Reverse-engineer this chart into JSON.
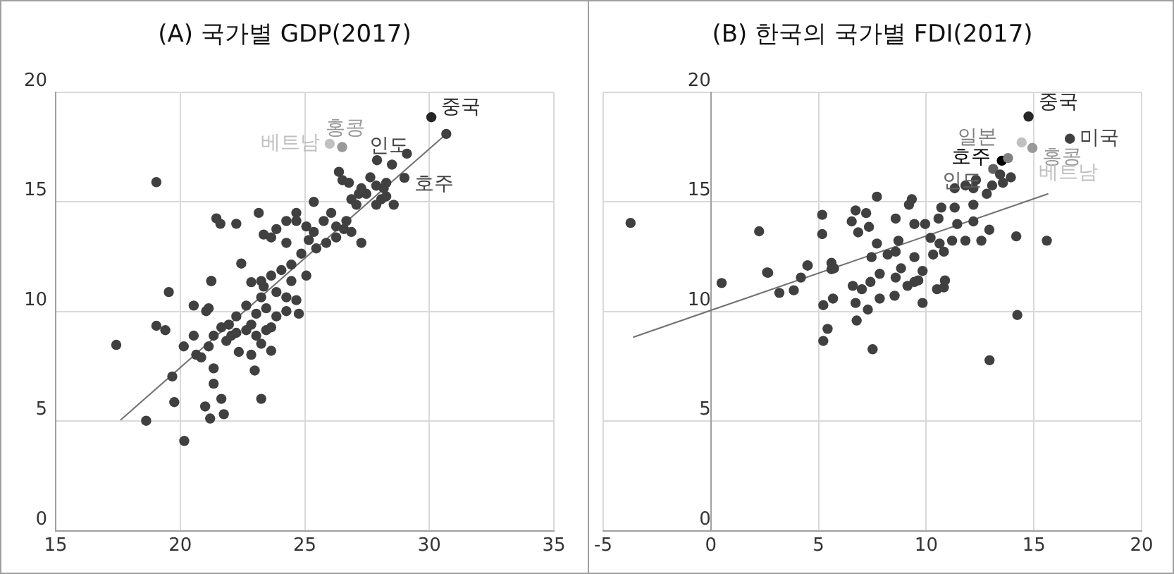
{
  "chart_data": [
    {
      "type": "scatter",
      "title": "(A) 국가별 GDP(2017)",
      "xlim": [
        15,
        35
      ],
      "xticks": [
        15,
        20,
        25,
        30,
        35
      ],
      "ylim": [
        0,
        20
      ],
      "yticks": [
        0,
        5,
        10,
        15,
        20
      ],
      "grid": true,
      "legend": false,
      "marker": "circle",
      "series": [
        {
          "color": "#404040",
          "x": [
            26.37,
            26.51,
            26.77,
            27.27,
            27.63,
            27.87,
            28.17,
            28.27,
            28.57,
            27.87,
            27.17,
            26.87,
            25.36,
            24.66,
            24.26,
            23.86,
            23.65,
            24.66,
            25.06,
            25.76,
            26.06,
            26.26,
            26.57,
            26.87,
            27.27,
            25.36,
            25.16,
            24.26,
            23.35,
            23.15,
            21.45,
            21.61,
            22.25,
            22.45,
            21.25,
            26.26,
            25.86,
            25.46,
            24.86,
            24.46,
            24.06,
            23.65,
            23.25,
            26.67,
            27.07,
            27.47,
            28.07,
            28.27,
            17.43,
            19.54,
            21.24,
            19.04,
            19.4,
            20.54,
            21.04,
            21.14,
            20.14,
            20.54,
            20.64,
            20.84,
            21.14,
            21.34,
            21.65,
            21.95,
            21.85,
            22.05,
            22.25,
            22.35,
            22.65,
            22.85,
            23.05,
            23.25,
            22.85,
            23.65,
            22.99,
            23.25,
            21.34,
            21.34,
            19.68,
            19.76,
            21.0,
            21.2,
            21.65,
            21.75,
            18.63,
            20.16,
            23.05,
            23.45,
            23.86,
            24.26,
            24.76,
            23.65,
            23.45,
            22.85,
            23.35,
            23.86,
            24.26,
            24.66,
            23.25,
            22.65,
            22.25,
            24.46,
            25.06,
            30.68,
            27.9,
            29.1,
            19.04
          ],
          "values": [
            16.37,
            15.99,
            15.87,
            15.62,
            16.12,
            15.74,
            15.62,
            15.25,
            14.87,
            14.87,
            15.37,
            15.12,
            15.0,
            14.5,
            14.13,
            13.76,
            13.38,
            14.13,
            13.88,
            14.13,
            14.5,
            13.88,
            13.76,
            13.63,
            13.13,
            13.63,
            13.26,
            13.13,
            13.51,
            14.5,
            14.25,
            14.0,
            14.0,
            12.19,
            11.39,
            13.38,
            13.13,
            12.88,
            12.64,
            12.14,
            11.89,
            11.64,
            11.39,
            14.13,
            14.87,
            15.37,
            15.12,
            15.87,
            8.48,
            10.89,
            11.39,
            9.35,
            9.15,
            10.27,
            10.02,
            10.15,
            8.41,
            8.9,
            8.03,
            7.91,
            8.41,
            8.9,
            9.28,
            9.4,
            8.66,
            8.9,
            9.03,
            8.16,
            9.15,
            9.4,
            8.9,
            8.53,
            8.03,
            8.21,
            7.31,
            6.02,
            7.41,
            6.71,
            7.04,
            5.87,
            5.67,
            5.12,
            6.02,
            5.32,
            5.02,
            4.1,
            9.9,
            10.15,
            9.78,
            10.02,
            9.9,
            9.28,
            9.15,
            11.34,
            11.14,
            10.89,
            10.65,
            10.52,
            10.65,
            10.27,
            9.78,
            11.39,
            11.64,
            18.1,
            16.9,
            17.2,
            15.9
          ]
        },
        {
          "name": "중국",
          "color": "#262626",
          "x": [
            30.08
          ],
          "values": [
            18.86
          ]
        },
        {
          "name": "홍콩",
          "color": "#999999",
          "x": [
            26.5
          ],
          "values": [
            17.5
          ]
        },
        {
          "name": "베트남",
          "color": "#c0c0c0",
          "x": [
            26.0
          ],
          "values": [
            17.65
          ]
        },
        {
          "name": "인도",
          "color": "#404040",
          "x": [
            28.5
          ],
          "values": [
            16.7
          ]
        },
        {
          "name": "호주",
          "color": "#404040",
          "x": [
            29.0
          ],
          "values": [
            16.1
          ]
        },
        {
          "type": "line",
          "marker": "none",
          "color": "#707070",
          "x": [
            17.6,
            30.68
          ],
          "values": [
            5.05,
            18.1
          ]
        }
      ]
    },
    {
      "type": "scatter",
      "title": "(B) 한국의 국가별 FDI(2017)",
      "xlim": [
        -5,
        20
      ],
      "xticks": [
        -5,
        0,
        5,
        10,
        15,
        20
      ],
      "ylim": [
        0,
        20
      ],
      "yticks": [
        0,
        5,
        10,
        15,
        20
      ],
      "grid": true,
      "legend": false,
      "marker": "circle",
      "series": [
        {
          "color": "#404040",
          "x": [
            -3.73,
            2.24,
            2.66,
            4.48,
            5.17,
            5.17,
            5.6,
            5.72,
            6.54,
            6.72,
            7.21,
            6.84,
            7.34,
            7.71,
            7.71,
            7.46,
            8.21,
            8.58,
            8.71,
            8.58,
            9.2,
            9.33,
            9.45,
            9.95,
            10.2,
            9.45,
            10.57,
            10.7,
            11.32,
            11.44,
            10.82,
            10.32,
            10.62,
            11.2,
            11.82,
            12.19,
            12.19,
            12.56,
            12.93,
            11.32,
            11.82,
            12.31,
            12.19,
            12.81,
            13.06,
            13.56,
            13.93,
            13.43,
            14.18,
            15.6,
            8.83,
            7.84,
            9.83,
            0.5,
            2.61,
            3.18,
            3.85,
            4.18,
            4.5,
            5.22,
            5.42,
            5.22,
            5.6,
            5.67,
            6.59,
            6.72,
            6.77,
            7.01,
            7.41,
            7.29,
            7.51,
            7.84,
            8.53,
            8.58,
            9.13,
            9.45,
            9.63,
            9.83,
            10.5,
            10.82,
            10.87,
            12.94,
            14.23
          ],
          "values": [
            14.04,
            13.66,
            11.77,
            12.1,
            13.53,
            14.41,
            12.22,
            11.97,
            14.11,
            14.61,
            14.49,
            13.61,
            13.86,
            15.24,
            13.1,
            12.48,
            12.6,
            14.24,
            13.23,
            12.73,
            14.87,
            15.12,
            13.99,
            13.99,
            13.36,
            12.48,
            14.24,
            14.74,
            14.74,
            13.99,
            12.73,
            12.6,
            13.1,
            13.23,
            13.23,
            14.11,
            14.87,
            13.23,
            13.73,
            15.62,
            15.75,
            16.0,
            15.62,
            15.37,
            15.75,
            15.87,
            16.12,
            16.25,
            13.43,
            13.23,
            11.97,
            11.72,
            11.85,
            11.3,
            11.78,
            10.85,
            10.97,
            11.55,
            12.1,
            10.29,
            9.21,
            8.66,
            11.93,
            10.59,
            11.17,
            10.39,
            9.59,
            11.02,
            11.35,
            10.09,
            8.28,
            10.59,
            10.72,
            11.55,
            11.17,
            11.35,
            11.42,
            10.39,
            11.02,
            11.1,
            11.42,
            7.78,
            9.84
          ]
        },
        {
          "name": "중국",
          "color": "#262626",
          "x": [
            14.75
          ],
          "values": [
            18.89
          ]
        },
        {
          "name": "미국",
          "color": "#404040",
          "x": [
            16.67
          ],
          "values": [
            17.88
          ]
        },
        {
          "name": "홍콩",
          "color": "#999999",
          "x": [
            14.93
          ],
          "values": [
            17.46
          ]
        },
        {
          "name": "베트남",
          "color": "#c0c0c0",
          "x": [
            14.43
          ],
          "values": [
            17.71
          ]
        },
        {
          "name": "일본",
          "color": "#808080",
          "x": [
            13.8
          ],
          "values": [
            17.0
          ]
        },
        {
          "name": "호주",
          "color": "#000000",
          "x": [
            13.51
          ],
          "values": [
            16.88
          ]
        },
        {
          "name": "인도",
          "color": "#606060",
          "x": [
            13.11
          ],
          "values": [
            16.5
          ]
        },
        {
          "type": "line",
          "marker": "none",
          "color": "#707070",
          "x": [
            -3.61,
            15.67
          ],
          "values": [
            8.83,
            15.37
          ]
        }
      ]
    }
  ]
}
